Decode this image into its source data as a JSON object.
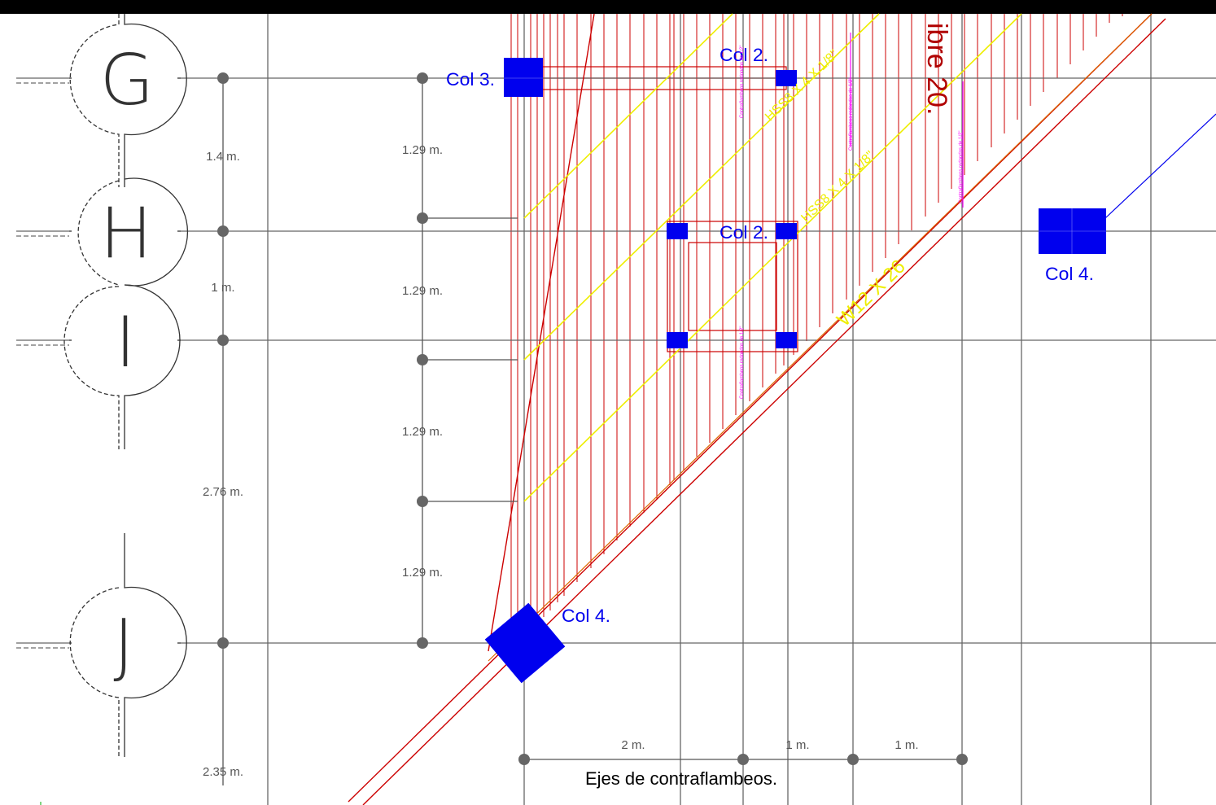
{
  "axes": {
    "letters": [
      "G",
      "H",
      "I",
      "J"
    ]
  },
  "dimensions": {
    "left_chain": [
      "1.4 m.",
      "1 m.",
      "2.76 m.",
      "2.35 m."
    ],
    "mid_chain": [
      "1.29 m.",
      "1.29 m.",
      "1.29 m.",
      "1.29 m."
    ],
    "bottom_chain": [
      "2 m.",
      "1 m.",
      "1 m."
    ]
  },
  "columns": {
    "col3": "Col 3.",
    "col2_top": "Col 2.",
    "col2_mid": "Col 2.",
    "col4_right": "Col 4.",
    "col4_rot": "Col 4."
  },
  "members": {
    "beam_main": "W12 X 26",
    "hss_1": "HSS8 X 4 X 1/8\"",
    "hss_2": "HSS8 X 4 X 1/8\"",
    "title_fragment": "ibre 20.",
    "bracing_note": "Contraflambeos redondos de 1/2\""
  },
  "captions": {
    "bracing_axes": "Ejes de contraflambeos."
  },
  "colors": {
    "column_fill": "#0000ee",
    "label_blue": "#0000ee",
    "bracing_red": "#cc0000",
    "hss_yellow": "#ffff00",
    "grid_gray": "#666666",
    "dim_gray": "#555555",
    "note_magenta": "#ff00ff",
    "title_red": "#b00000",
    "top_bar": "#000000"
  }
}
